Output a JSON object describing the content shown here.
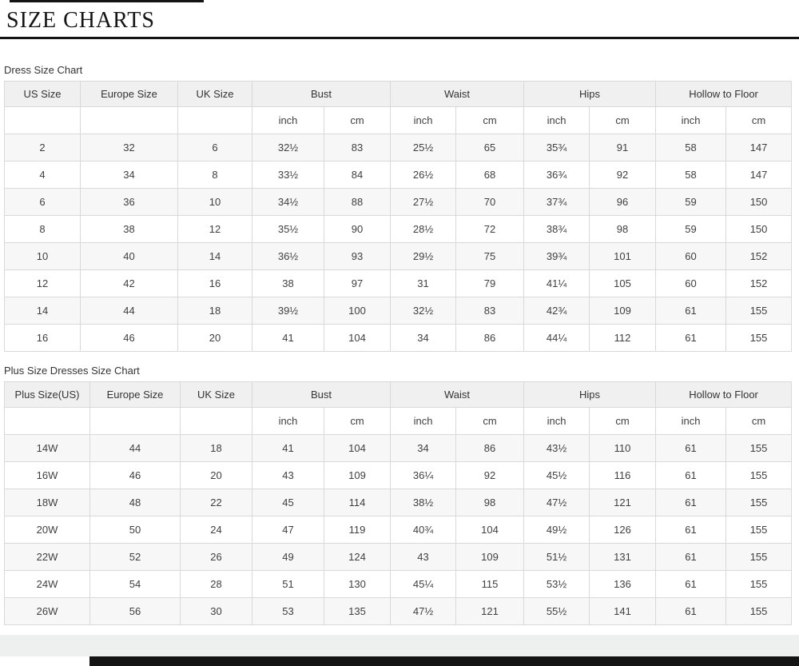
{
  "page": {
    "title": "SIZE CHARTS"
  },
  "colors": {
    "title_text": "#141414",
    "rule": "#141414",
    "table_border": "#d9d9d9",
    "header_bg": "#f0f0f0",
    "stripe_bg": "#f7f7f7",
    "body_text": "#404040",
    "footer_gray": "#eef0f0",
    "footer_bar": "#141414"
  },
  "tables": [
    {
      "label": "Dress Size Chart",
      "columns": [
        {
          "label": "US Size",
          "sub": []
        },
        {
          "label": "Europe Size",
          "sub": []
        },
        {
          "label": "UK Size",
          "sub": []
        },
        {
          "label": "Bust",
          "sub": [
            "inch",
            "cm"
          ]
        },
        {
          "label": "Waist",
          "sub": [
            "inch",
            "cm"
          ]
        },
        {
          "label": "Hips",
          "sub": [
            "inch",
            "cm"
          ]
        },
        {
          "label": "Hollow to Floor",
          "sub": [
            "inch",
            "cm"
          ]
        }
      ],
      "rows": [
        [
          "2",
          "32",
          "6",
          "32½",
          "83",
          "25½",
          "65",
          "35¾",
          "91",
          "58",
          "147"
        ],
        [
          "4",
          "34",
          "8",
          "33½",
          "84",
          "26½",
          "68",
          "36¾",
          "92",
          "58",
          "147"
        ],
        [
          "6",
          "36",
          "10",
          "34½",
          "88",
          "27½",
          "70",
          "37¾",
          "96",
          "59",
          "150"
        ],
        [
          "8",
          "38",
          "12",
          "35½",
          "90",
          "28½",
          "72",
          "38¾",
          "98",
          "59",
          "150"
        ],
        [
          "10",
          "40",
          "14",
          "36½",
          "93",
          "29½",
          "75",
          "39¾",
          "101",
          "60",
          "152"
        ],
        [
          "12",
          "42",
          "16",
          "38",
          "97",
          "31",
          "79",
          "41¼",
          "105",
          "60",
          "152"
        ],
        [
          "14",
          "44",
          "18",
          "39½",
          "100",
          "32½",
          "83",
          "42¾",
          "109",
          "61",
          "155"
        ],
        [
          "16",
          "46",
          "20",
          "41",
          "104",
          "34",
          "86",
          "44¼",
          "112",
          "61",
          "155"
        ]
      ]
    },
    {
      "label": "Plus Size Dresses Size Chart",
      "columns": [
        {
          "label": "Plus Size(US)",
          "sub": []
        },
        {
          "label": "Europe Size",
          "sub": []
        },
        {
          "label": "UK Size",
          "sub": []
        },
        {
          "label": "Bust",
          "sub": [
            "inch",
            "cm"
          ]
        },
        {
          "label": "Waist",
          "sub": [
            "inch",
            "cm"
          ]
        },
        {
          "label": "Hips",
          "sub": [
            "inch",
            "cm"
          ]
        },
        {
          "label": "Hollow to Floor",
          "sub": [
            "inch",
            "cm"
          ]
        }
      ],
      "rows": [
        [
          "14W",
          "44",
          "18",
          "41",
          "104",
          "34",
          "86",
          "43½",
          "110",
          "61",
          "155"
        ],
        [
          "16W",
          "46",
          "20",
          "43",
          "109",
          "36¼",
          "92",
          "45½",
          "116",
          "61",
          "155"
        ],
        [
          "18W",
          "48",
          "22",
          "45",
          "114",
          "38½",
          "98",
          "47½",
          "121",
          "61",
          "155"
        ],
        [
          "20W",
          "50",
          "24",
          "47",
          "119",
          "40¾",
          "104",
          "49½",
          "126",
          "61",
          "155"
        ],
        [
          "22W",
          "52",
          "26",
          "49",
          "124",
          "43",
          "109",
          "51½",
          "131",
          "61",
          "155"
        ],
        [
          "24W",
          "54",
          "28",
          "51",
          "130",
          "45¼",
          "115",
          "53½",
          "136",
          "61",
          "155"
        ],
        [
          "26W",
          "56",
          "30",
          "53",
          "135",
          "47½",
          "121",
          "55½",
          "141",
          "61",
          "155"
        ]
      ]
    }
  ]
}
